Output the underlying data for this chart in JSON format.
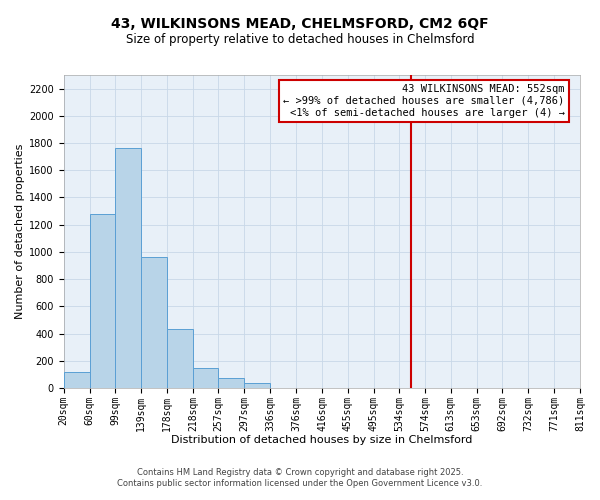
{
  "title_line1": "43, WILKINSONS MEAD, CHELMSFORD, CM2 6QF",
  "title_line2": "Size of property relative to detached houses in Chelmsford",
  "xlabel": "Distribution of detached houses by size in Chelmsford",
  "ylabel": "Number of detached properties",
  "bar_values": [
    120,
    1280,
    1760,
    960,
    430,
    150,
    75,
    35,
    0,
    0,
    0,
    0,
    0,
    0,
    0,
    0,
    0,
    0,
    0,
    0
  ],
  "bin_edges": [
    20,
    60,
    99,
    139,
    178,
    218,
    257,
    297,
    336,
    376,
    416,
    455,
    495,
    534,
    574,
    613,
    653,
    692,
    732,
    771,
    811
  ],
  "bar_color": "#b8d4e8",
  "bar_edge_color": "#5a9fd4",
  "grid_color": "#c8d8e8",
  "bg_color": "#e8f0f8",
  "vline_x": 552,
  "vline_color": "#cc0000",
  "ylim": [
    0,
    2300
  ],
  "yticks": [
    0,
    200,
    400,
    600,
    800,
    1000,
    1200,
    1400,
    1600,
    1800,
    2000,
    2200
  ],
  "annotation_title": "43 WILKINSONS MEAD: 552sqm",
  "annotation_line1": "← >99% of detached houses are smaller (4,786)",
  "annotation_line2": "<1% of semi-detached houses are larger (4) →",
  "annotation_box_color": "#ffffff",
  "annotation_border_color": "#cc0000",
  "footer_line1": "Contains HM Land Registry data © Crown copyright and database right 2025.",
  "footer_line2": "Contains public sector information licensed under the Open Government Licence v3.0.",
  "title_fontsize": 10,
  "subtitle_fontsize": 8.5,
  "axis_label_fontsize": 8,
  "tick_fontsize": 7,
  "annotation_fontsize": 7.5,
  "footer_fontsize": 6
}
